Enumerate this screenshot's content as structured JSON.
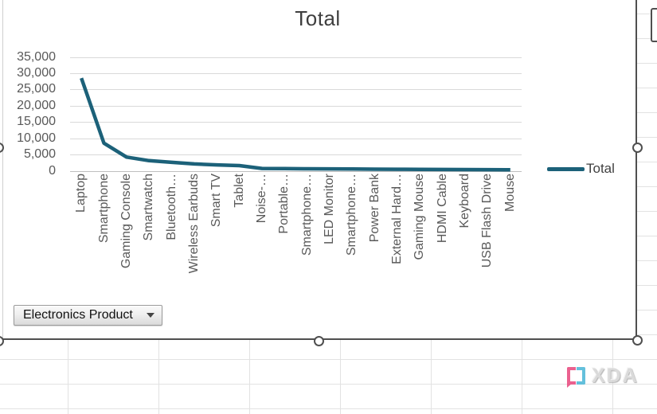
{
  "chart_data": {
    "type": "line",
    "title": "Total",
    "categories": [
      "Laptop",
      "Smartphone",
      "Gaming Console",
      "Smartwatch",
      "Bluetooth…",
      "Wireless Earbuds",
      "Smart TV",
      "Tablet",
      "Noise-…",
      "Portable…",
      "Smartphone…",
      "LED Monitor",
      "Smartphone…",
      "Power Bank",
      "External Hard…",
      "Gaming Mouse",
      "HDMI Cable",
      "Keyboard",
      "USB Flash Drive",
      "Mouse"
    ],
    "series": [
      {
        "name": "Total",
        "values": [
          28500,
          8500,
          4200,
          3100,
          2600,
          2100,
          1800,
          1600,
          700,
          650,
          620,
          580,
          550,
          500,
          460,
          430,
          400,
          370,
          340,
          300
        ]
      }
    ],
    "ylim": [
      0,
      35000
    ],
    "yticks": [
      {
        "value": 0,
        "label": "0"
      },
      {
        "value": 5000,
        "label": "5,000"
      },
      {
        "value": 10000,
        "label": "10,000"
      },
      {
        "value": 15000,
        "label": "15,000"
      },
      {
        "value": 20000,
        "label": "20,000"
      },
      {
        "value": 25000,
        "label": "25,000"
      },
      {
        "value": 30000,
        "label": "30,000"
      },
      {
        "value": 35000,
        "label": "35,000"
      }
    ],
    "grid": true,
    "legend_position": "right",
    "legend_entries": [
      "Total"
    ]
  },
  "filter": {
    "label": "Electronics Product"
  },
  "watermark": {
    "text": "XDA"
  },
  "colors": {
    "series_line": "#1c6179",
    "chart_gridline": "#d9d9d9",
    "axis_line": "#bfbfbf",
    "axis_text": "#595959",
    "title_text": "#3f3f3f",
    "selection_border": "#4f4f4f",
    "sheet_gridline": "#e2e2e2",
    "watermark_pink": "#e8467c",
    "watermark_cyan": "#49b6d6"
  }
}
